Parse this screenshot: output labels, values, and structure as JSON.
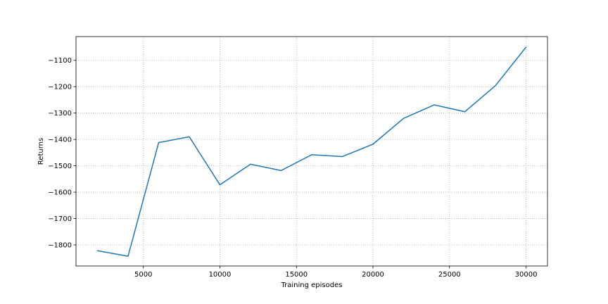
{
  "chart_data": {
    "type": "line",
    "title": "",
    "xlabel": "Training episodes",
    "ylabel": "Returns",
    "xlim": [
      600,
      31400
    ],
    "ylim": [
      -1880,
      -1010
    ],
    "x_ticks": [
      5000,
      10000,
      15000,
      20000,
      25000,
      30000
    ],
    "y_ticks": [
      -1800,
      -1700,
      -1600,
      -1500,
      -1400,
      -1300,
      -1200,
      -1100
    ],
    "grid": true,
    "legend": "none",
    "series": [
      {
        "color": "#1f77b4",
        "x": [
          2000,
          4000,
          6000,
          8000,
          10000,
          12000,
          14000,
          16000,
          18000,
          20000,
          22000,
          24000,
          26000,
          28000,
          30000
        ],
        "values": [
          -1822,
          -1843,
          -1412,
          -1390,
          -1572,
          -1494,
          -1518,
          -1458,
          -1465,
          -1418,
          -1320,
          -1269,
          -1295,
          -1196,
          -1050
        ]
      }
    ]
  }
}
